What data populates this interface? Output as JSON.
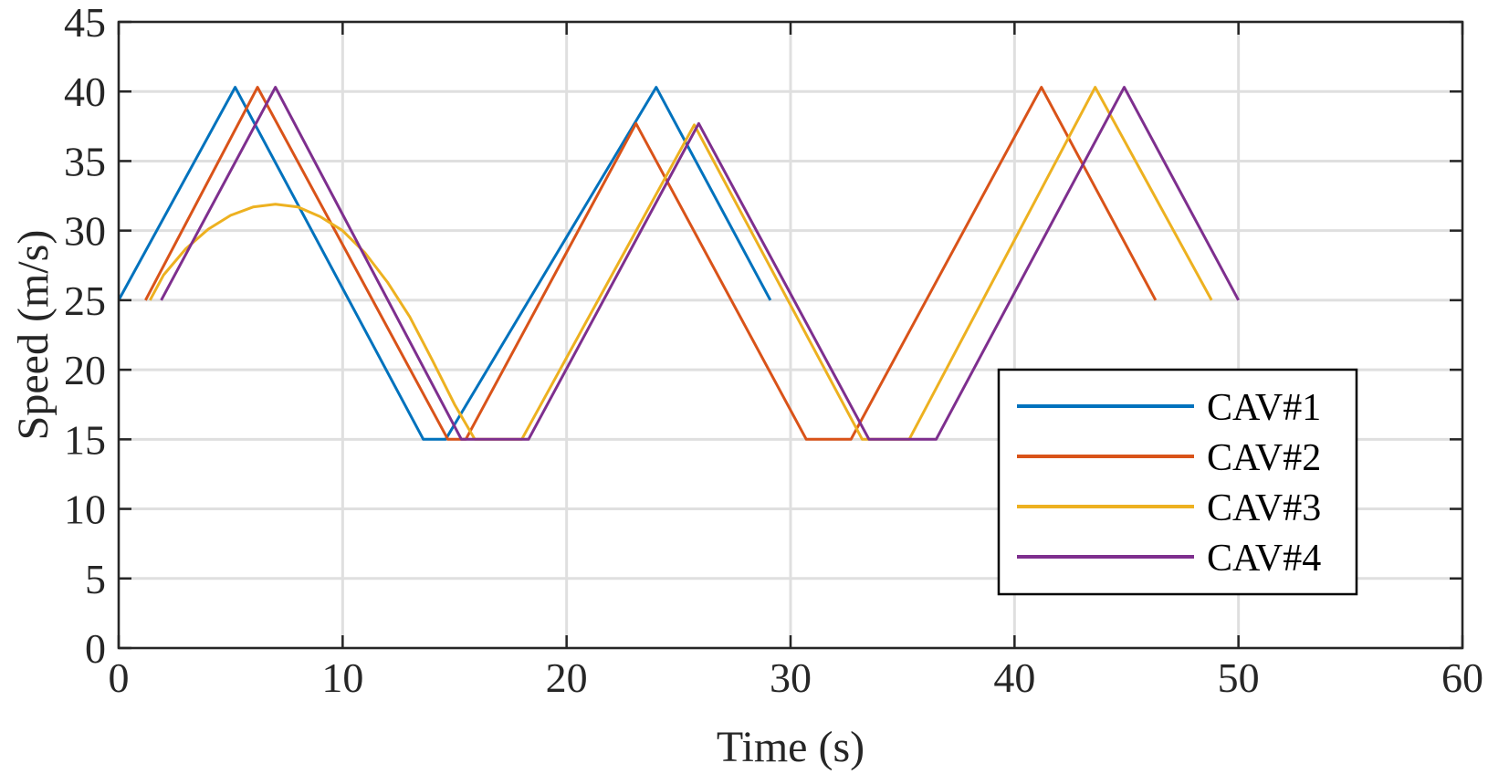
{
  "chart_data": {
    "type": "line",
    "title": "",
    "xlabel": "Time (s)",
    "ylabel": "Speed (m/s)",
    "xlim": [
      0,
      60
    ],
    "ylim": [
      0,
      45
    ],
    "xticks": [
      0,
      10,
      20,
      30,
      40,
      50,
      60
    ],
    "yticks": [
      0,
      5,
      10,
      15,
      20,
      25,
      30,
      35,
      40,
      45
    ],
    "grid": true,
    "legend_position": "bottom-right",
    "series": [
      {
        "name": "CAV#1",
        "color": "#0072BD",
        "points": [
          [
            0,
            25
          ],
          [
            5.2,
            40.3
          ],
          [
            13.6,
            15
          ],
          [
            14.6,
            15
          ],
          [
            24,
            40.3
          ],
          [
            29.1,
            25
          ]
        ]
      },
      {
        "name": "CAV#2",
        "color": "#D95319",
        "points": [
          [
            1.2,
            25
          ],
          [
            6.2,
            40.3
          ],
          [
            14.7,
            15
          ],
          [
            15.5,
            15
          ],
          [
            23.1,
            37.7
          ],
          [
            30.7,
            15
          ],
          [
            32.7,
            15
          ],
          [
            41.2,
            40.3
          ],
          [
            46.3,
            25
          ]
        ]
      },
      {
        "name": "CAV#3",
        "color": "#EDB120",
        "points": [
          [
            1.4,
            25
          ],
          [
            2,
            26.8
          ],
          [
            3,
            28.7
          ],
          [
            4,
            30.1
          ],
          [
            5,
            31.1
          ],
          [
            6,
            31.7
          ],
          [
            7,
            31.9
          ],
          [
            8,
            31.7
          ],
          [
            9,
            31
          ],
          [
            10,
            30
          ],
          [
            11,
            28.4
          ],
          [
            12,
            26.3
          ],
          [
            13,
            23.8
          ],
          [
            14,
            20.7
          ],
          [
            15,
            17.5
          ],
          [
            15.9,
            15
          ],
          [
            18,
            15
          ],
          [
            25.7,
            37.6
          ],
          [
            33.2,
            15
          ],
          [
            35.3,
            15
          ],
          [
            43.6,
            40.3
          ],
          [
            48.8,
            25
          ]
        ]
      },
      {
        "name": "CAV#4",
        "color": "#7E2F8E",
        "points": [
          [
            1.9,
            25
          ],
          [
            7,
            40.3
          ],
          [
            15.3,
            15
          ],
          [
            18.3,
            15
          ],
          [
            25.9,
            37.7
          ],
          [
            33.5,
            15
          ],
          [
            36.5,
            15
          ],
          [
            44.9,
            40.3
          ],
          [
            50,
            25
          ]
        ]
      }
    ]
  }
}
